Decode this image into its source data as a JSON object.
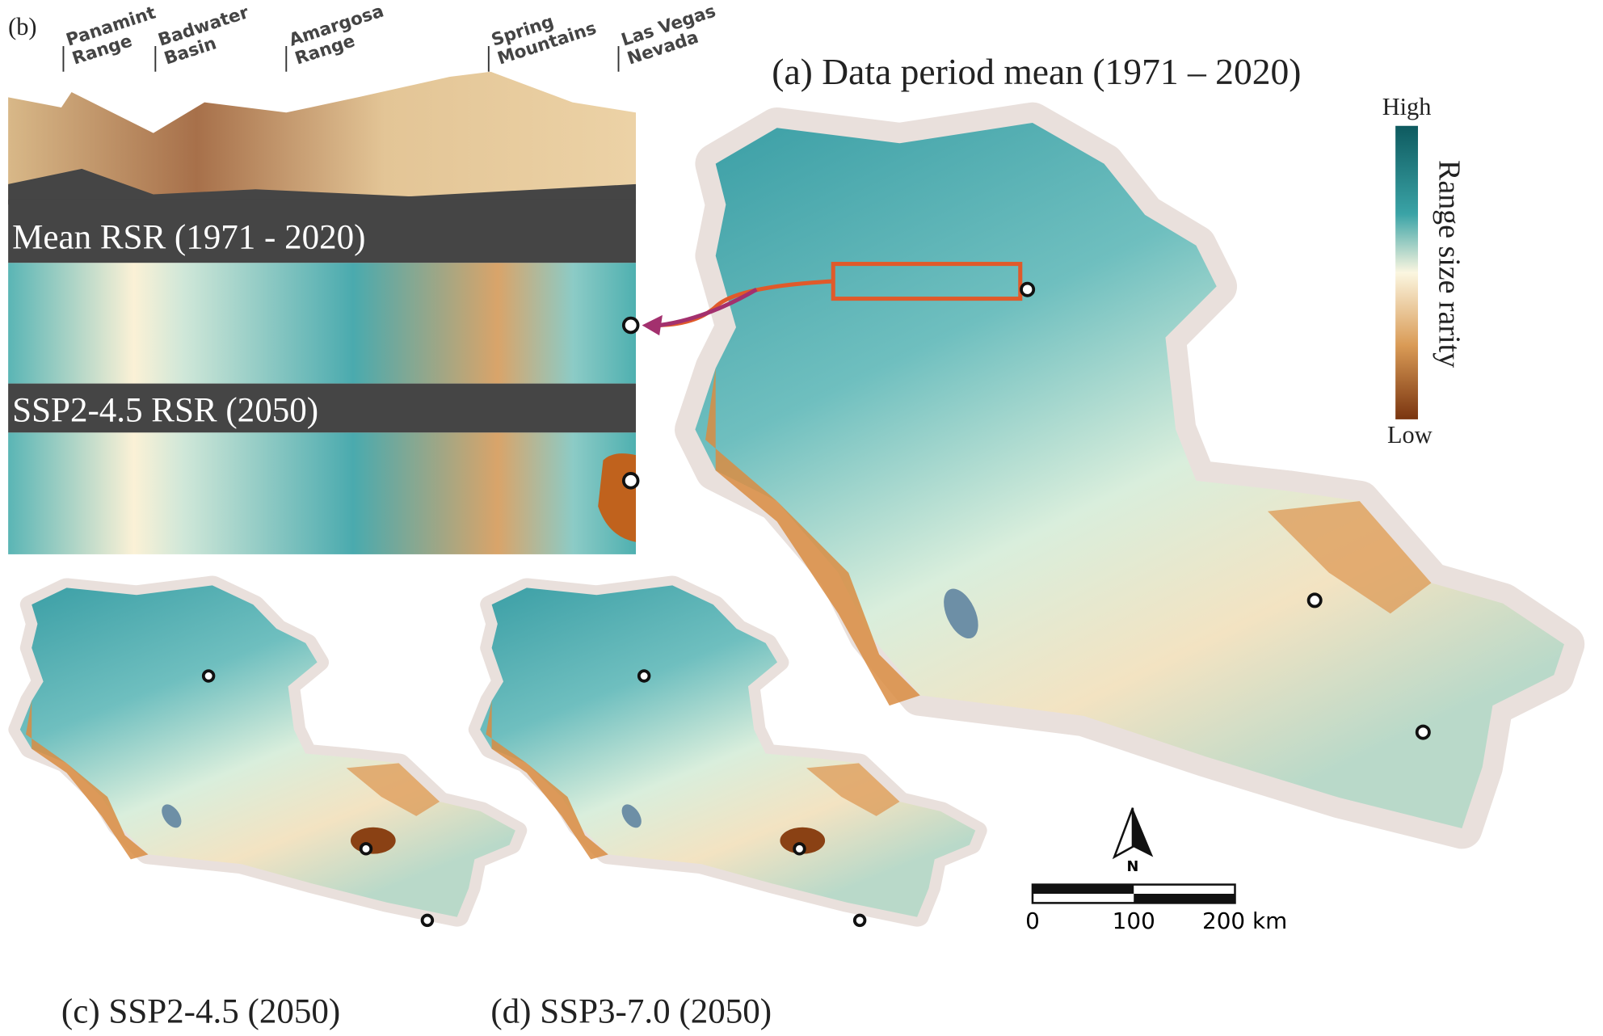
{
  "panel_b": {
    "label": "(b)",
    "landmarks": [
      {
        "lines": [
          "Panamint",
          "Range"
        ]
      },
      {
        "lines": [
          "Badwater",
          "Basin"
        ]
      },
      {
        "lines": [
          "Amargosa",
          "Range"
        ]
      },
      {
        "lines": [
          "Spring",
          "Mountains"
        ]
      },
      {
        "lines": [
          "Las Vegas",
          "Nevada"
        ]
      }
    ],
    "strips": [
      "Mean RSR (1971 - 2020)",
      "SSP2-4.5 RSR (2050)"
    ]
  },
  "panel_a": {
    "title": "(a) Data period mean (1971 – 2020)"
  },
  "legend": {
    "high": "High",
    "low": "Low",
    "title": "Range size rarity"
  },
  "north": "N",
  "scale_bar": [
    "0",
    "100",
    "200 km"
  ],
  "panel_c": {
    "title": "(c) SSP2-4.5 (2050)"
  },
  "panel_d": {
    "title": "(d) SSP3-7.0 (2050)"
  }
}
